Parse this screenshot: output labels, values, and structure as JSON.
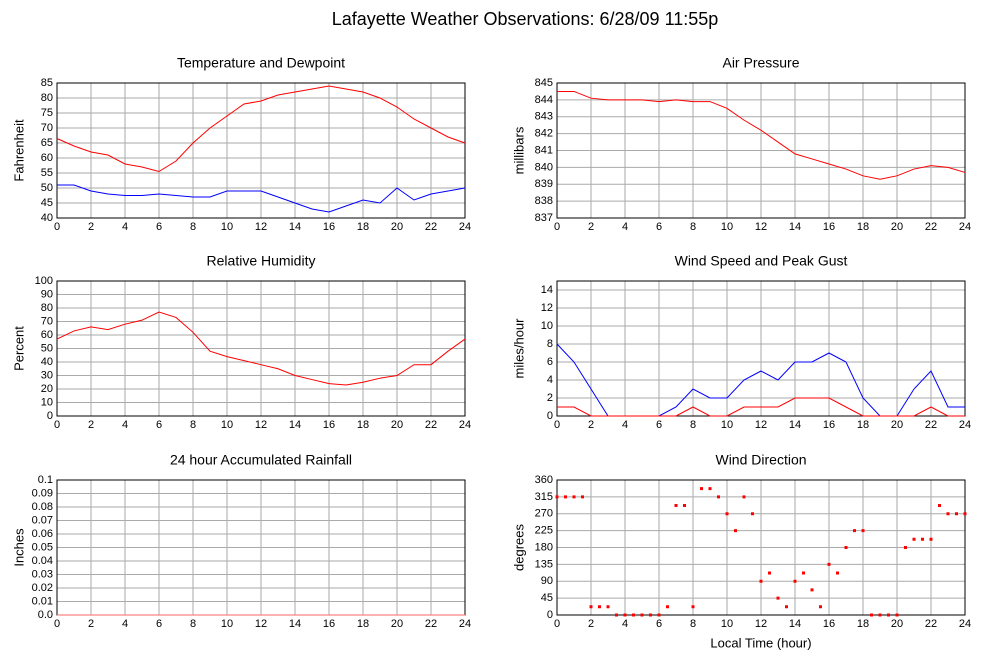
{
  "title": "Lafayette Weather Observations: 6/28/09 11:55p",
  "chart_data": [
    {
      "type": "line",
      "title": "Temperature and Dewpoint",
      "ylabel": "Fahrenheit",
      "x": [
        0,
        1,
        2,
        3,
        4,
        5,
        6,
        7,
        8,
        9,
        10,
        11,
        12,
        13,
        14,
        15,
        16,
        17,
        18,
        19,
        20,
        21,
        22,
        23,
        24
      ],
      "series": [
        {
          "color": "#ff0000",
          "values": [
            66.5,
            64,
            62,
            61,
            58,
            57,
            55.5,
            59,
            65,
            70,
            74,
            78,
            79,
            81,
            82,
            83,
            84,
            83,
            82,
            80,
            77,
            73,
            70,
            67,
            65
          ]
        },
        {
          "color": "#0000ff",
          "values": [
            51,
            51,
            49,
            48,
            47.5,
            47.5,
            48,
            47.5,
            47,
            47,
            49,
            49,
            49,
            47,
            45,
            43,
            42,
            44,
            46,
            45,
            50,
            46,
            48,
            49,
            50
          ]
        }
      ],
      "xlim": [
        0,
        24
      ],
      "xticks": [
        0,
        2,
        4,
        6,
        8,
        10,
        12,
        14,
        16,
        18,
        20,
        22,
        24
      ],
      "ylim": [
        40,
        85
      ],
      "yticks": [
        40,
        45,
        50,
        55,
        60,
        65,
        70,
        75,
        80,
        85
      ],
      "grid": true
    },
    {
      "type": "line",
      "title": "Air Pressure",
      "ylabel": "millibars",
      "x": [
        0,
        1,
        2,
        3,
        4,
        5,
        6,
        7,
        8,
        9,
        10,
        11,
        12,
        13,
        14,
        15,
        16,
        17,
        18,
        19,
        20,
        21,
        22,
        23,
        24
      ],
      "series": [
        {
          "color": "#ff0000",
          "values": [
            844.5,
            844.5,
            844.1,
            844.0,
            844.0,
            844.0,
            843.9,
            844.0,
            843.9,
            843.9,
            843.5,
            842.8,
            842.2,
            841.5,
            840.8,
            840.5,
            840.2,
            839.9,
            839.5,
            839.3,
            839.5,
            839.9,
            840.1,
            840.0,
            839.7
          ]
        }
      ],
      "xlim": [
        0,
        24
      ],
      "xticks": [
        0,
        2,
        4,
        6,
        8,
        10,
        12,
        14,
        16,
        18,
        20,
        22,
        24
      ],
      "ylim": [
        837,
        845
      ],
      "yticks": [
        837,
        838,
        839,
        840,
        841,
        842,
        843,
        844,
        845
      ],
      "grid": true
    },
    {
      "type": "line",
      "title": "Relative Humidity",
      "ylabel": "Percent",
      "x": [
        0,
        1,
        2,
        3,
        4,
        5,
        6,
        7,
        8,
        9,
        10,
        11,
        12,
        13,
        14,
        15,
        16,
        17,
        18,
        19,
        20,
        21,
        22,
        23,
        24
      ],
      "series": [
        {
          "color": "#ff0000",
          "values": [
            57,
            63,
            66,
            64,
            68,
            71,
            77,
            73,
            62,
            48,
            44,
            41,
            38,
            35,
            30,
            27,
            24,
            23,
            25,
            28,
            30,
            38,
            38,
            48,
            57
          ]
        }
      ],
      "xlim": [
        0,
        24
      ],
      "xticks": [
        0,
        2,
        4,
        6,
        8,
        10,
        12,
        14,
        16,
        18,
        20,
        22,
        24
      ],
      "ylim": [
        0,
        100
      ],
      "yticks": [
        0,
        10,
        20,
        30,
        40,
        50,
        60,
        70,
        80,
        90,
        100
      ],
      "grid": true
    },
    {
      "type": "line",
      "title": "Wind Speed and Peak Gust",
      "ylabel": "miles/hour",
      "x": [
        0,
        1,
        2,
        3,
        4,
        5,
        6,
        7,
        8,
        9,
        10,
        11,
        12,
        13,
        14,
        15,
        16,
        17,
        18,
        19,
        20,
        21,
        22,
        23,
        24
      ],
      "series": [
        {
          "color": "#0000ff",
          "values": [
            8,
            6,
            3,
            0,
            0,
            0,
            0,
            1,
            3,
            2,
            2,
            4,
            5,
            4,
            6,
            6,
            7,
            6,
            2,
            0,
            0,
            3,
            5,
            1,
            1
          ]
        },
        {
          "color": "#ff0000",
          "values": [
            1,
            1,
            0,
            0,
            0,
            0,
            0,
            0,
            1,
            0,
            0,
            1,
            1,
            1,
            2,
            2,
            2,
            1,
            0,
            0,
            0,
            0,
            1,
            0,
            0
          ]
        }
      ],
      "xlim": [
        0,
        24
      ],
      "xticks": [
        0,
        2,
        4,
        6,
        8,
        10,
        12,
        14,
        16,
        18,
        20,
        22,
        24
      ],
      "ylim": [
        0,
        15
      ],
      "yticks": [
        0,
        2,
        4,
        6,
        8,
        10,
        12,
        14
      ],
      "grid": true
    },
    {
      "type": "line",
      "title": "24 hour Accumulated Rainfall",
      "ylabel": "Inches",
      "x": [
        0,
        1,
        2,
        3,
        4,
        5,
        6,
        7,
        8,
        9,
        10,
        11,
        12,
        13,
        14,
        15,
        16,
        17,
        18,
        19,
        20,
        21,
        22,
        23,
        24
      ],
      "series": [
        {
          "color": "#ff6666",
          "values": [
            0,
            0,
            0,
            0,
            0,
            0,
            0,
            0,
            0,
            0,
            0,
            0,
            0,
            0,
            0,
            0,
            0,
            0,
            0,
            0,
            0,
            0,
            0,
            0,
            0
          ]
        }
      ],
      "xlim": [
        0,
        24
      ],
      "xticks": [
        0,
        2,
        4,
        6,
        8,
        10,
        12,
        14,
        16,
        18,
        20,
        22,
        24
      ],
      "ylim": [
        0,
        0.1
      ],
      "yticks": [
        {
          "value": 0,
          "label": "0.0"
        },
        0.01,
        0.02,
        0.03,
        0.04,
        0.05,
        0.06,
        0.07,
        0.08,
        0.09,
        0.1
      ],
      "grid": true
    },
    {
      "type": "scatter",
      "title": "Wind Direction",
      "ylabel": "degrees",
      "xlabel": "Local Time (hour)",
      "x": [
        0,
        0.5,
        1,
        1.5,
        2,
        2.5,
        3,
        3.5,
        4,
        4.5,
        5,
        5.5,
        6,
        6.5,
        7,
        7.5,
        8,
        8.5,
        9,
        9.5,
        10,
        10.5,
        11,
        11.5,
        12,
        12.5,
        13,
        13.5,
        14,
        14.5,
        15,
        15.5,
        16,
        16.5,
        17,
        17.5,
        18,
        18.5,
        19,
        19.5,
        20,
        20.5,
        21,
        21.5,
        22,
        22.5,
        23,
        23.5,
        24
      ],
      "values": [
        315,
        315,
        315,
        315,
        22,
        22,
        22,
        0,
        0,
        0,
        0,
        0,
        0,
        22,
        292,
        292,
        22,
        337,
        337,
        315,
        270,
        225,
        315,
        270,
        90,
        112,
        45,
        22,
        90,
        112,
        67,
        22,
        135,
        112,
        180,
        225,
        225,
        0,
        0,
        0,
        0,
        180,
        202,
        202,
        202,
        292,
        270,
        270,
        270
      ],
      "color": "#ff0000",
      "xlim": [
        0,
        24
      ],
      "xticks": [
        0,
        2,
        4,
        6,
        8,
        10,
        12,
        14,
        16,
        18,
        20,
        22,
        24
      ],
      "ylim": [
        0,
        360
      ],
      "yticks": [
        0,
        45,
        90,
        135,
        180,
        225,
        270,
        315,
        360
      ],
      "grid": true
    }
  ]
}
